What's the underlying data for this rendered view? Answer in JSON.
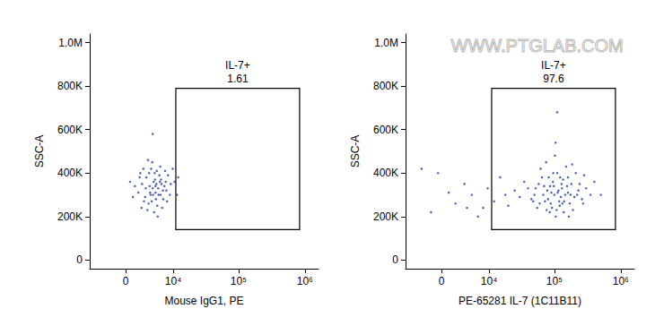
{
  "chart_data": [
    {
      "type": "scatter",
      "xlabel": "Mouse IgG1, PE",
      "ylabel": "SSC-A",
      "color": "#1f3a9e",
      "grid": false,
      "xlim": [
        -6400,
        1600000
      ],
      "xticks": [
        0,
        {
          "value": 10000,
          "label": "10⁴"
        },
        {
          "value": 100000,
          "label": "10⁵"
        },
        {
          "value": 1000000,
          "label": "10⁶"
        }
      ],
      "ylim": [
        -40000,
        1040000
      ],
      "yticks": [
        0,
        {
          "value": 200000,
          "label": "200K"
        },
        {
          "value": 400000,
          "label": "400K"
        },
        {
          "value": 600000,
          "label": "600K"
        },
        {
          "value": 800000,
          "label": "800K"
        },
        {
          "value": 1000000,
          "label": "1.0M"
        }
      ],
      "gate": {
        "label": "IL-7+",
        "percent": 1.61,
        "x": [
          11000,
          830000
        ],
        "y": [
          140000,
          790000
        ]
      },
      "x": [
        4300,
        3800,
        5100,
        2900,
        6200,
        4700,
        3500,
        5600,
        7100,
        2400,
        4000,
        6800,
        3100,
        5300,
        8200,
        1800,
        4500,
        6000,
        3300,
        7700,
        2100,
        5000,
        9100,
        3700,
        4900,
        6500,
        2700,
        5800,
        4200,
        10500,
        1300,
        3900,
        7300,
        4600,
        5500,
        2300,
        8800,
        6300,
        3400,
        4800,
        1000,
        7900,
        5200,
        3000,
        12000,
        6700,
        4100,
        2600,
        5900,
        4400,
        600,
        9800,
        3600,
        7500,
        5400,
        4300,
        11500,
        2000,
        6100,
        4900
      ],
      "values": [
        330000,
        310000,
        350000,
        290000,
        370000,
        400000,
        260000,
        300000,
        340000,
        350000,
        420000,
        280000,
        380000,
        250000,
        390000,
        310000,
        360000,
        430000,
        230000,
        320000,
        400000,
        280000,
        350000,
        340000,
        310000,
        240000,
        270000,
        390000,
        450000,
        360000,
        340000,
        300000,
        410000,
        220000,
        330000,
        240000,
        300000,
        350000,
        460000,
        370000,
        290000,
        270000,
        410000,
        330000,
        380000,
        320000,
        270000,
        420000,
        360000,
        300000,
        360000,
        420000,
        400000,
        360000,
        200000,
        580000,
        300000,
        380000,
        300000,
        340000
      ]
    },
    {
      "type": "scatter",
      "xlabel": "PE-65281 IL-7 (1C11B11)",
      "ylabel": "SSC-A",
      "color": "#1f3a9e",
      "grid": false,
      "annotations": [
        "WWW.PTGLAB.COM"
      ],
      "xlim": [
        -6400,
        1600000
      ],
      "xticks": [
        0,
        {
          "value": 10000,
          "label": "10⁴"
        },
        {
          "value": 100000,
          "label": "10⁵"
        },
        {
          "value": 1000000,
          "label": "10⁶"
        }
      ],
      "ylim": [
        -40000,
        1040000
      ],
      "yticks": [
        0,
        {
          "value": 200000,
          "label": "200K"
        },
        {
          "value": 400000,
          "label": "400K"
        },
        {
          "value": 600000,
          "label": "600K"
        },
        {
          "value": 800000,
          "label": "800K"
        },
        {
          "value": 1000000,
          "label": "1.0M"
        }
      ],
      "gate": {
        "label": "IL-7+",
        "percent": 97.6,
        "x": [
          11000,
          830000
        ],
        "y": [
          140000,
          790000
        ]
      },
      "x": [
        100000,
        80000,
        130000,
        60000,
        160000,
        95000,
        120000,
        70000,
        200000,
        50000,
        110000,
        140000,
        85000,
        180000,
        65000,
        230000,
        105000,
        40000,
        150000,
        90000,
        125000,
        75000,
        260000,
        55000,
        170000,
        98000,
        135000,
        45000,
        210000,
        115000,
        68000,
        300000,
        88000,
        190000,
        145000,
        35000,
        102000,
        160000,
        78000,
        240000,
        118000,
        62000,
        350000,
        92000,
        128000,
        52000,
        175000,
        108000,
        82000,
        270000,
        30000,
        155000,
        72000,
        400000,
        138000,
        96000,
        58000,
        220000,
        112000,
        185000,
        25000,
        132000,
        86000,
        500000,
        48000,
        122000,
        165000,
        104000,
        76000,
        280000,
        2000,
        -1500,
        5000,
        8000,
        3500,
        -3000,
        12000,
        15000,
        1000,
        6500,
        9500,
        18000,
        20000,
        4000,
        -500,
        110000
      ],
      "values": [
        300000,
        280000,
        330000,
        260000,
        310000,
        360000,
        250000,
        340000,
        290000,
        300000,
        400000,
        270000,
        220000,
        350000,
        380000,
        320000,
        200000,
        330000,
        430000,
        310000,
        290000,
        450000,
        280000,
        240000,
        260000,
        340000,
        370000,
        280000,
        400000,
        320000,
        300000,
        330000,
        260000,
        230000,
        300000,
        360000,
        480000,
        380000,
        320000,
        350000,
        270000,
        420000,
        300000,
        240000,
        350000,
        330000,
        300000,
        230000,
        380000,
        260000,
        290000,
        340000,
        270000,
        360000,
        220000,
        400000,
        350000,
        300000,
        310000,
        440000,
        320000,
        260000,
        340000,
        300000,
        270000,
        380000,
        200000,
        540000,
        230000,
        390000,
        260000,
        220000,
        300000,
        240000,
        350000,
        420000,
        270000,
        380000,
        310000,
        200000,
        330000,
        300000,
        250000,
        240000,
        400000,
        680000
      ]
    }
  ]
}
